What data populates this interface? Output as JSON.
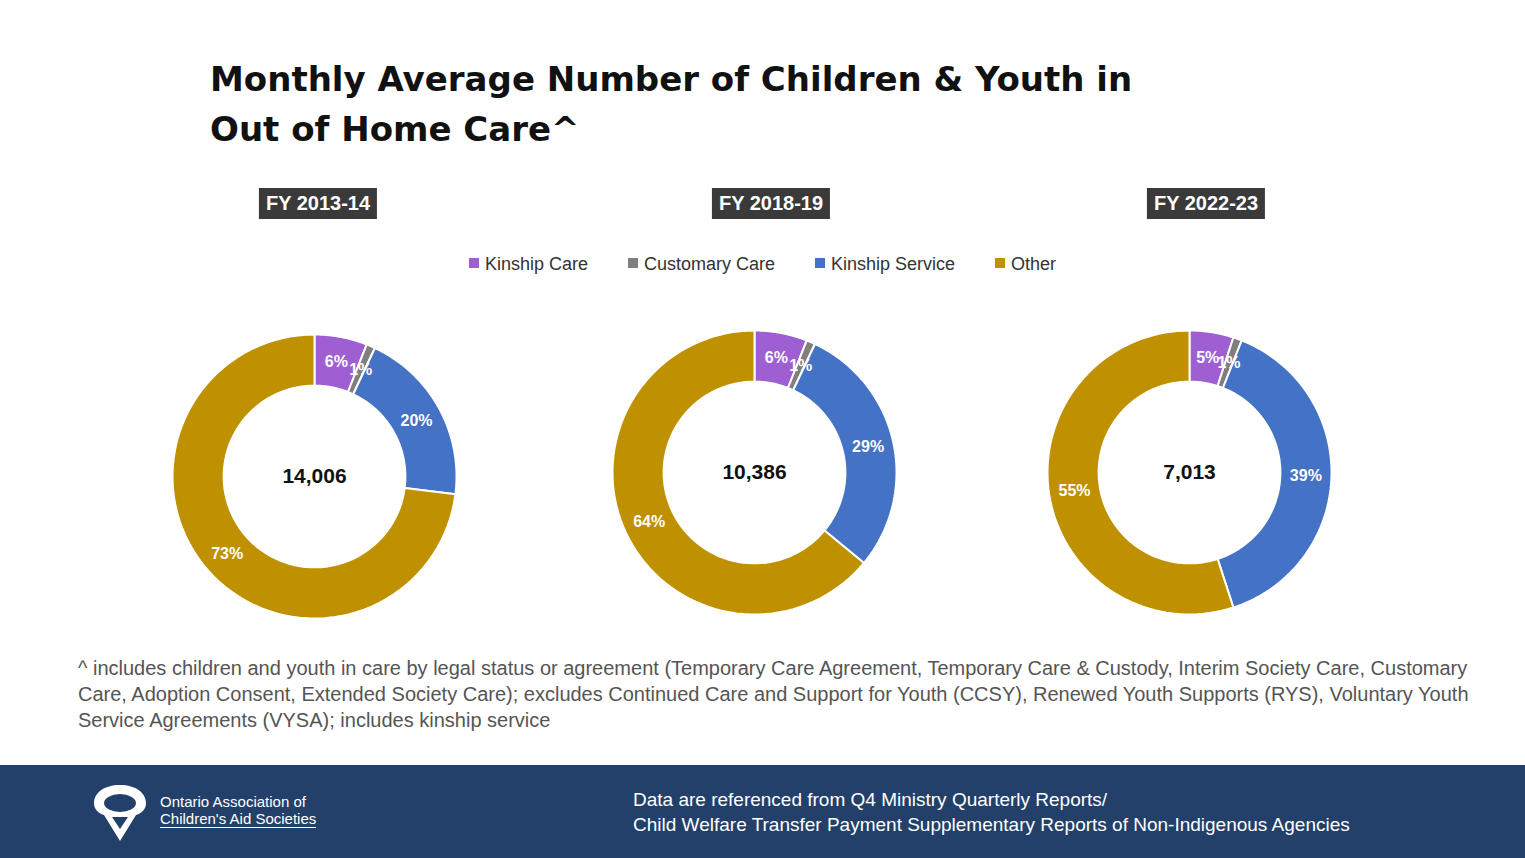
{
  "title": "Monthly Average Number of Children & Youth in Out of Home Care^",
  "footnote": "^ includes children and youth in care by legal status or agreement (Temporary Care Agreement, Temporary Care & Custody, Interim Society Care, Customary Care, Adoption Consent, Extended Society Care); excludes Continued Care and Support for Youth (CCSY), Renewed Youth Supports (RYS), Voluntary Youth Service Agreements (VYSA); includes kinship service",
  "source": [
    "Data are referenced from Q4 Ministry Quarterly Reports/",
    "Child Welfare Transfer Payment Supplementary Reports of Non-Indigenous Agencies"
  ],
  "organization": [
    "Ontario Association of",
    "Children's Aid Societies"
  ],
  "chart_data": [
    {
      "type": "pie",
      "title": "FY 2013-14",
      "categories": [
        "Kinship Care",
        "Customary Care",
        "Kinship Service",
        "Other"
      ],
      "values": [
        6,
        1,
        20,
        73
      ],
      "value_labels": [
        "6%",
        "1%",
        "20%",
        "73%"
      ],
      "colors": [
        "#9e5fd3",
        "#7f7f7f",
        "#4472c4",
        "#bf9000"
      ],
      "total": 14006,
      "data_labels": true,
      "legend": "top"
    },
    {
      "type": "pie",
      "title": "FY 2018-19",
      "categories": [
        "Kinship Care",
        "Customary Care",
        "Kinship Service",
        "Other"
      ],
      "values": [
        6,
        1,
        29,
        64
      ],
      "value_labels": [
        "6%",
        "1%",
        "29%",
        "64%"
      ],
      "colors": [
        "#9e5fd3",
        "#7f7f7f",
        "#4472c4",
        "#bf9000"
      ],
      "total": 10386,
      "data_labels": true,
      "legend": "top"
    },
    {
      "type": "pie",
      "title": "FY 2022-23",
      "categories": [
        "Kinship Care",
        "Customary Care",
        "Kinship Service",
        "Other"
      ],
      "values": [
        5,
        1,
        39,
        55
      ],
      "value_labels": [
        "5%",
        "1%",
        "39%",
        "55%"
      ],
      "colors": [
        "#9e5fd3",
        "#7f7f7f",
        "#4472c4",
        "#bf9000"
      ],
      "total": 7013,
      "data_labels": true,
      "legend": "top"
    }
  ]
}
